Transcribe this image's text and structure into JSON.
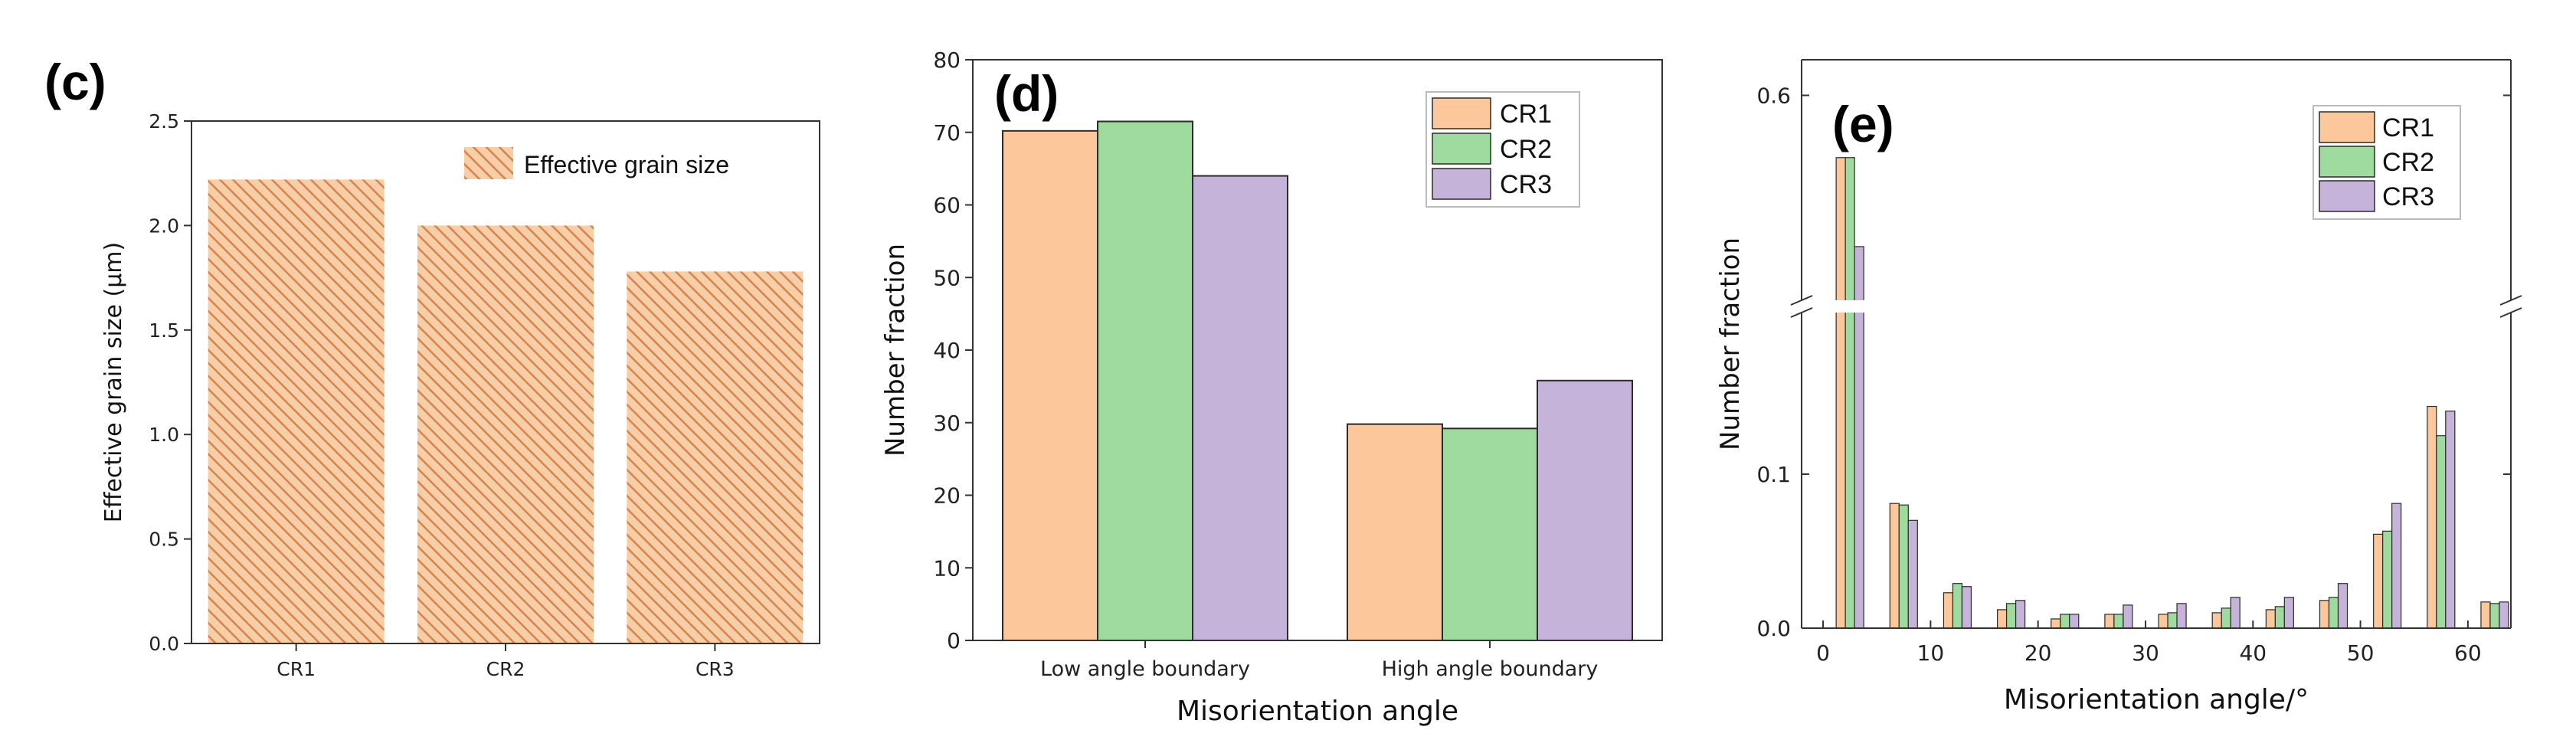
{
  "colors": {
    "CR1": "#FBC79B",
    "CR2": "#9FDB9E",
    "CR3": "#C6B3DA",
    "hatch_bg": "#F6CFA8",
    "hatch_line": "#D9824A",
    "edge": "#2B2B2B",
    "axis": "#333333"
  },
  "chart_data": [
    {
      "id": "c",
      "panel_label": "(c)",
      "type": "bar",
      "categories": [
        "CR1",
        "CR2",
        "CR3"
      ],
      "series": [
        {
          "name": "Effective grain size",
          "values": [
            2.22,
            2.0,
            1.78
          ]
        }
      ],
      "ylabel": "Effective grain size (μm)",
      "xlabel": "",
      "ylim": [
        0,
        2.5
      ],
      "yticks": [
        0.0,
        0.5,
        1.0,
        1.5,
        2.0,
        2.5
      ],
      "ytick_labels": [
        "0.0",
        "0.5",
        "1.0",
        "1.5",
        "2.0",
        "2.5"
      ],
      "legend": [
        "Effective grain size"
      ],
      "legend_position": "top-right"
    },
    {
      "id": "d",
      "panel_label": "(d)",
      "type": "bar",
      "categories": [
        "Low angle boundary",
        "High angle boundary"
      ],
      "series": [
        {
          "name": "CR1",
          "values": [
            70.2,
            29.8
          ]
        },
        {
          "name": "CR2",
          "values": [
            71.5,
            29.2
          ]
        },
        {
          "name": "CR3",
          "values": [
            64.0,
            35.8
          ]
        }
      ],
      "ylabel": "Number fraction",
      "xlabel": "Misorientation angle",
      "ylim": [
        0,
        80
      ],
      "yticks": [
        0,
        10,
        20,
        30,
        40,
        50,
        60,
        70,
        80
      ],
      "ytick_labels": [
        "0",
        "10",
        "20",
        "30",
        "40",
        "50",
        "60",
        "70",
        "80"
      ],
      "legend": [
        "CR1",
        "CR2",
        "CR3"
      ],
      "legend_position": "top-right"
    },
    {
      "id": "e",
      "panel_label": "(e)",
      "type": "bar",
      "x": [
        2.5,
        7.5,
        12.5,
        17.5,
        22.5,
        27.5,
        32.5,
        37.5,
        42.5,
        47.5,
        52.5,
        57.5,
        62.5
      ],
      "series": [
        {
          "name": "CR1",
          "values": [
            0.53,
            0.081,
            0.023,
            0.012,
            0.006,
            0.009,
            0.009,
            0.01,
            0.012,
            0.018,
            0.061,
            0.144,
            0.017
          ]
        },
        {
          "name": "CR2",
          "values": [
            0.53,
            0.08,
            0.029,
            0.016,
            0.009,
            0.009,
            0.01,
            0.013,
            0.014,
            0.02,
            0.063,
            0.125,
            0.016
          ]
        },
        {
          "name": "CR3",
          "values": [
            0.43,
            0.07,
            0.027,
            0.018,
            0.009,
            0.015,
            0.016,
            0.02,
            0.02,
            0.029,
            0.081,
            0.141,
            0.017
          ]
        }
      ],
      "ylabel": "Number fraction",
      "xlabel": "Misorientation angle/°",
      "xlim": [
        -2,
        64
      ],
      "xticks": [
        0,
        10,
        20,
        30,
        40,
        50,
        60
      ],
      "xtick_labels": [
        "0",
        "10",
        "20",
        "30",
        "40",
        "50",
        "60"
      ],
      "y_axis_break": {
        "lower_range": [
          0,
          0.2
        ],
        "upper_range": [
          0.38,
          0.64
        ]
      },
      "yticks": [
        0.0,
        0.1,
        0.6
      ],
      "ytick_labels": [
        "0.0",
        "0.1",
        "0.6"
      ],
      "legend": [
        "CR1",
        "CR2",
        "CR3"
      ],
      "legend_position": "top-right"
    }
  ]
}
